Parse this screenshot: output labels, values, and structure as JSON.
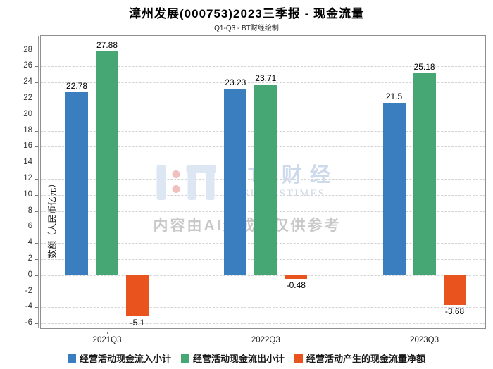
{
  "title": "漳州发展(000753)2023三季报 - 现金流量",
  "subtitle": "Q1-Q3 - BT财经绘制",
  "watermark": {
    "brand_cn": "BT 财经",
    "brand_en": "BUSINESSTIMES",
    "ai_notice": "内容由AI生成，仅供参考"
  },
  "chart_data": {
    "type": "bar",
    "title": "漳州发展(000753)2023三季报 - 现金流量",
    "subtitle": "Q1-Q3 - BT财经绘制",
    "categories": [
      "2021Q3",
      "2022Q3",
      "2023Q3"
    ],
    "series": [
      {
        "name": "经营活动现金流入小计",
        "color": "#3a7ebf",
        "values": [
          22.78,
          23.23,
          21.5
        ]
      },
      {
        "name": "经营活动现金流出小计",
        "color": "#47a774",
        "values": [
          27.88,
          23.71,
          25.18
        ]
      },
      {
        "name": "经营活动产生的现金流量净额",
        "color": "#e8531e",
        "values": [
          -5.1,
          -0.48,
          -3.68
        ]
      }
    ],
    "xlabel": "",
    "ylabel": "数额（人民币亿元）",
    "ylim": [
      -6.6,
      29.8
    ],
    "yticks": [
      -6,
      -4,
      -2,
      0,
      2,
      4,
      6,
      8,
      10,
      12,
      14,
      16,
      18,
      20,
      22,
      24,
      26,
      28
    ],
    "grid": true,
    "grid_style": "dashed",
    "legend_position": "bottom",
    "bar_value_labels": true
  }
}
